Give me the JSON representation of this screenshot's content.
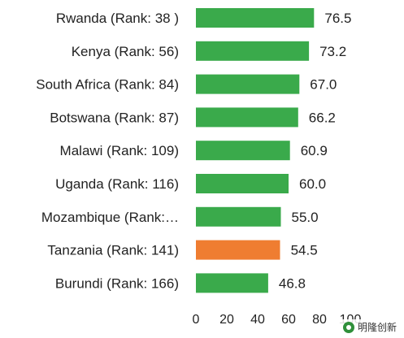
{
  "chart_data": {
    "type": "bar",
    "orientation": "horizontal",
    "categories": [
      "Rwanda (Rank: 38 )",
      "Kenya (Rank: 56)",
      "South Africa (Rank: 84)",
      "Botswana (Rank: 87)",
      "Malawi (Rank: 109)",
      "Uganda (Rank: 116)",
      "Mozambique (Rank:…",
      "Tanzania (Rank: 141)",
      "Burundi (Rank: 166)"
    ],
    "values": [
      76.5,
      73.2,
      67.0,
      66.2,
      60.9,
      60.0,
      55.0,
      54.5,
      46.8
    ],
    "value_labels": [
      "76.5",
      "73.2",
      "67.0",
      "66.2",
      "60.9",
      "60.0",
      "55.0",
      "54.5",
      "46.8"
    ],
    "highlight_index": 7,
    "colors": {
      "default": "#3aaa4b",
      "highlight": "#ef7d31"
    },
    "xlim": [
      0,
      100
    ],
    "xticks": [
      0,
      20,
      40,
      60,
      80,
      100
    ],
    "xtick_labels": [
      "0",
      "20",
      "40",
      "60",
      "80",
      "100"
    ],
    "grid": false,
    "title": "",
    "xlabel": "",
    "ylabel": ""
  },
  "watermark": {
    "text": "明隆创新",
    "icon": "wechat-logo-icon"
  }
}
